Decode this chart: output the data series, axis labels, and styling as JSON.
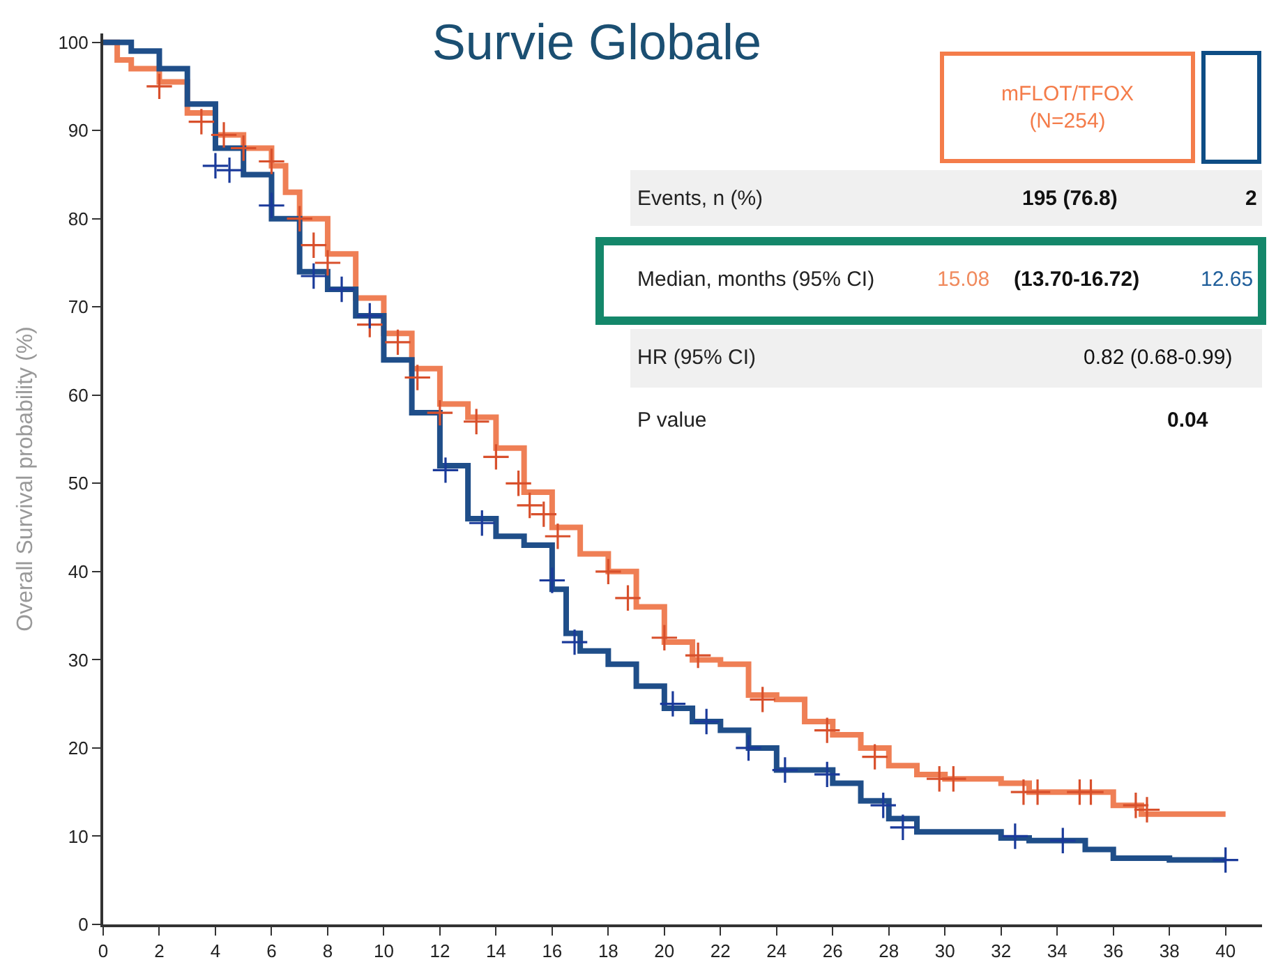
{
  "chart_data": {
    "type": "step",
    "title": "Survie Globale",
    "ylabel": "Overall Survival probability (%)",
    "xlim": [
      0,
      41.3
    ],
    "ylim": [
      0,
      101
    ],
    "xticks": [
      0,
      2,
      4,
      6,
      8,
      10,
      12,
      14,
      16,
      18,
      20,
      22,
      24,
      26,
      28,
      30,
      32,
      34,
      36,
      38,
      40
    ],
    "yticks": [
      0,
      10,
      20,
      30,
      40,
      50,
      60,
      70,
      80,
      90,
      100
    ],
    "grid": false,
    "legend": false,
    "line_style": "solid",
    "series": [
      {
        "color": "#ef7f55",
        "x": [
          0,
          0.5,
          1,
          2,
          3,
          4,
          5,
          6,
          6.5,
          7,
          8,
          9,
          10,
          11,
          12,
          13,
          14,
          15,
          16,
          17,
          18,
          19,
          20,
          21,
          22,
          23,
          24,
          25,
          26,
          27,
          28,
          29,
          30,
          32,
          33,
          35,
          36,
          37,
          40
        ],
        "values": [
          100,
          98,
          97,
          95.5,
          92,
          89.5,
          88,
          86,
          83,
          80,
          76,
          71,
          67,
          63,
          59,
          57.5,
          54,
          49,
          45,
          42,
          40,
          36,
          32,
          30,
          29.5,
          26,
          25.5,
          23,
          21.5,
          20,
          18,
          17,
          16.5,
          16,
          15,
          15,
          13.5,
          12.5,
          12.5
        ]
      },
      {
        "color": "#1f4e89",
        "x": [
          0,
          1,
          2,
          3,
          4,
          5,
          6,
          7,
          8,
          9,
          10,
          11,
          12,
          13,
          14,
          15,
          16,
          16.5,
          17,
          18,
          19,
          20,
          21,
          22,
          23,
          24,
          26,
          27,
          28,
          29,
          30,
          32,
          33,
          35,
          36,
          38,
          40
        ],
        "values": [
          100,
          99,
          97,
          93,
          88,
          85,
          80,
          74,
          72,
          69,
          64,
          58,
          52,
          46,
          44,
          43,
          38,
          33,
          31,
          29.5,
          27,
          24.5,
          23,
          22,
          20,
          17.5,
          16,
          14,
          12,
          10.5,
          10.5,
          9.8,
          9.5,
          8.5,
          7.5,
          7.3,
          7.3
        ]
      },
      {
        "type": "scatter",
        "marker": "cross",
        "color": "#d8502c",
        "x": [
          2,
          3.5,
          4.3,
          5,
          6,
          7,
          7.5,
          8,
          9.5,
          10.5,
          11.2,
          12,
          13.3,
          14,
          14.8,
          15.2,
          15.7,
          16.2,
          18,
          18.7,
          20,
          21.2,
          23.5,
          25.8,
          27.5,
          29.8,
          30.3,
          32.8,
          33.3,
          34.8,
          35.2,
          36.8,
          37.2
        ],
        "values": [
          95,
          91,
          89.5,
          88,
          86.5,
          80,
          77,
          75,
          68,
          66,
          62,
          58,
          57,
          53,
          50,
          47.5,
          46.5,
          44,
          40,
          37,
          32.5,
          30.5,
          25.5,
          22,
          19,
          16.5,
          16.5,
          15,
          15,
          15,
          15,
          13.5,
          13
        ]
      },
      {
        "type": "scatter",
        "marker": "cross",
        "color": "#1a3a9a",
        "x": [
          4,
          4.5,
          6,
          7.5,
          8.5,
          9.5,
          12.2,
          13.5,
          16,
          16.8,
          20.3,
          21.5,
          23,
          24.3,
          25.8,
          27.8,
          28.5,
          32.5,
          34.2,
          40
        ],
        "values": [
          86,
          85.5,
          81.5,
          73.5,
          72,
          69,
          51.5,
          45.5,
          39,
          32,
          25,
          23,
          20,
          17.5,
          17,
          13.5,
          11,
          10,
          9.5,
          7.3
        ]
      }
    ],
    "annotations": [
      "mFLOT/TFOX\n(N=254)",
      "Events, n (%)",
      "195 (76.8)",
      "2",
      "Median, months (95% CI)",
      "15.08",
      "(13.70-16.72)",
      "12.65",
      "HR (95% CI)",
      "0.82 (0.68-0.99)",
      "P value",
      "0.04"
    ]
  }
}
